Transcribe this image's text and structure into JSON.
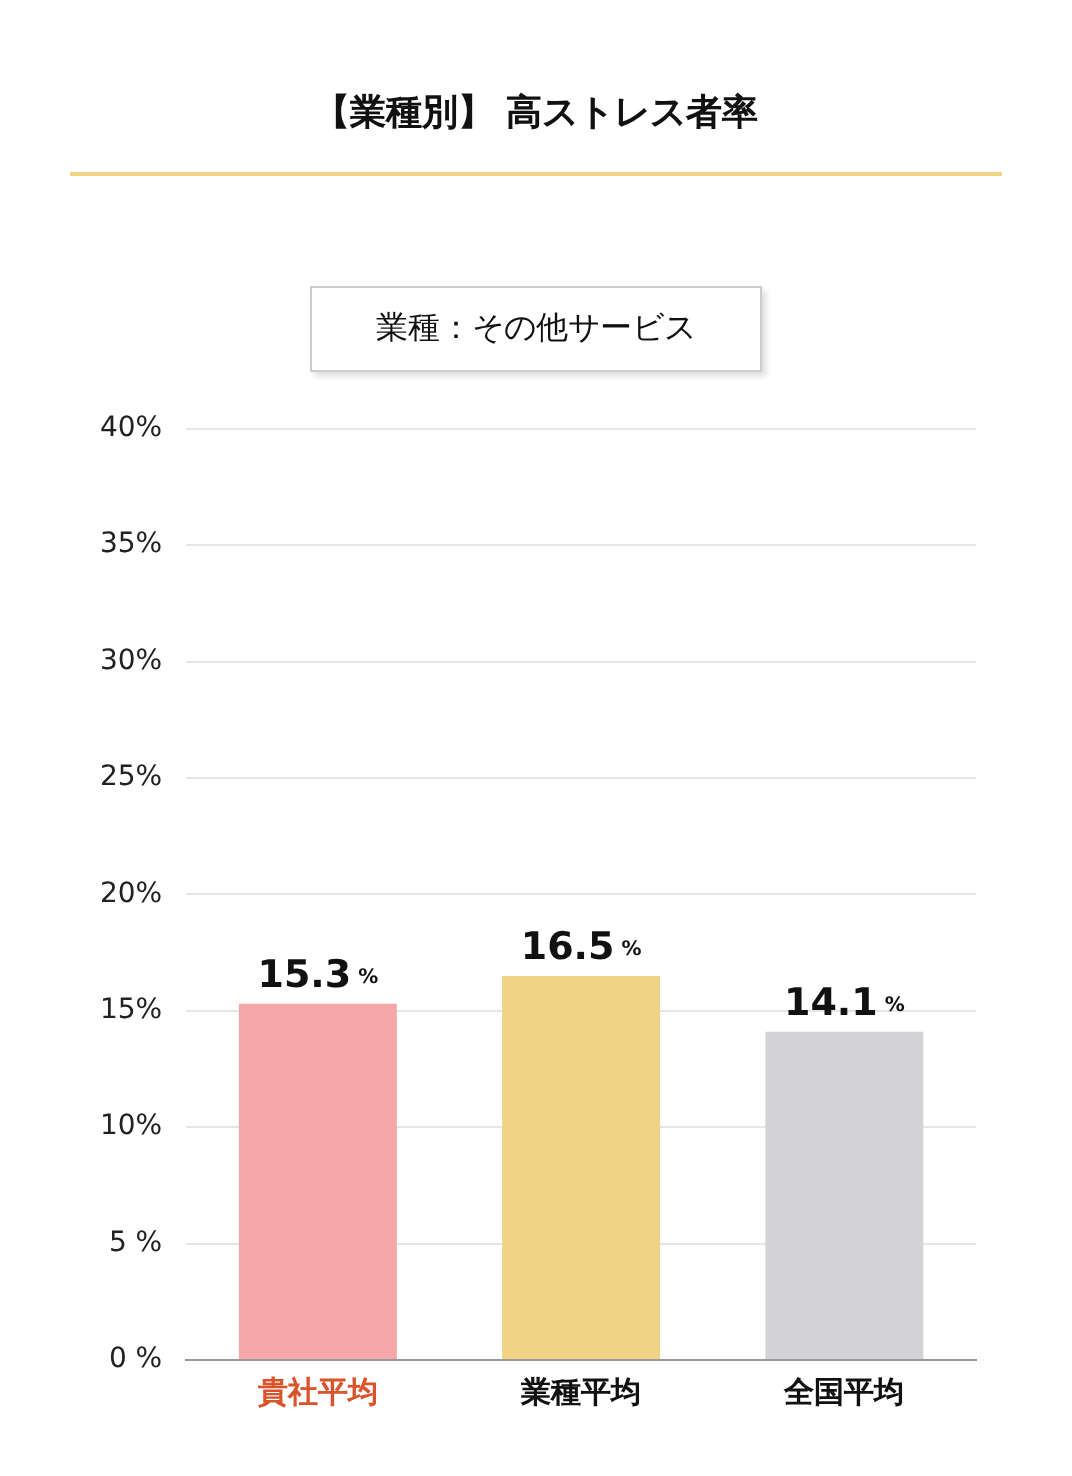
{
  "chart_data": {
    "type": "bar",
    "title": "【業種別】 高ストレス者率",
    "subtitle": "業種：その他サービス",
    "categories": [
      "貴社平均",
      "業種平均",
      "全国平均"
    ],
    "values": [
      15.3,
      16.5,
      14.1
    ],
    "colors": [
      "#f5a7aa",
      "#f0d384",
      "#d3d3d5"
    ],
    "value_labels": [
      "15.3 %",
      "16.5 %",
      "14.1 %"
    ],
    "ylim": [
      0,
      40
    ],
    "yticks": [
      {
        "value": 0,
        "label": "0 %"
      },
      {
        "value": 5,
        "label": "5 %"
      },
      {
        "value": 10,
        "label": "10%"
      },
      {
        "value": 15,
        "label": "15%"
      },
      {
        "value": 20,
        "label": "20%"
      },
      {
        "value": 25,
        "label": "25%"
      },
      {
        "value": 30,
        "label": "30%"
      },
      {
        "value": 35,
        "label": "35%"
      },
      {
        "value": 40,
        "label": "40%"
      }
    ],
    "grid": "y",
    "legend": false
  }
}
